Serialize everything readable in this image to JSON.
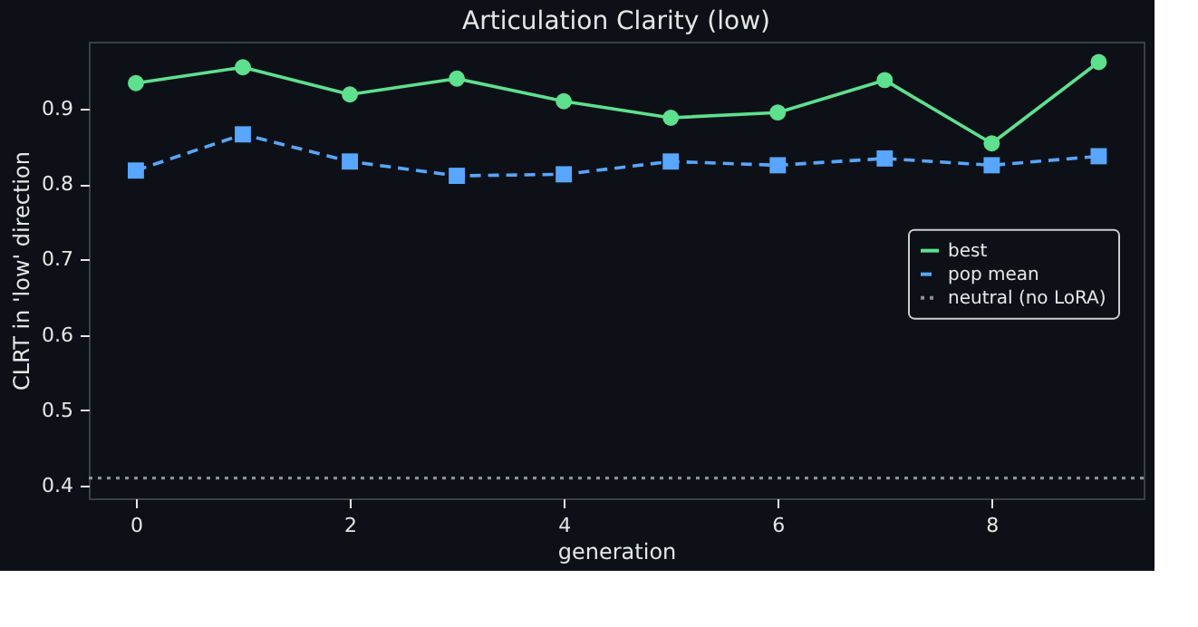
{
  "chart_data": {
    "type": "line",
    "title": "Articulation Clarity (low)",
    "xlabel": "generation",
    "ylabel": "CLRT in 'low' direction",
    "x": [
      0,
      1,
      2,
      3,
      4,
      5,
      6,
      7,
      8,
      9
    ],
    "series": [
      {
        "name": "best",
        "color": "#5ee08f",
        "marker": "circle",
        "line_style": "solid",
        "values": [
          0.934,
          0.955,
          0.919,
          0.94,
          0.91,
          0.888,
          0.895,
          0.938,
          0.854,
          0.962
        ]
      },
      {
        "name": "pop mean",
        "color": "#58a6ff",
        "marker": "square",
        "line_style": "dashed",
        "values": [
          0.818,
          0.866,
          0.83,
          0.811,
          0.813,
          0.83,
          0.825,
          0.834,
          0.825,
          0.837
        ]
      }
    ],
    "ref_lines": [
      {
        "axis": "y",
        "value": 0.41,
        "label": "neutral (no LoRA)",
        "color": "#8b8f96",
        "line_style": "dotted"
      }
    ],
    "xlim": [
      -0.44,
      9.42
    ],
    "xticks": [
      0,
      2,
      4,
      6,
      8
    ],
    "ylim": [
      0.383,
      0.989
    ],
    "yticks": [
      0.4,
      0.5,
      0.6,
      0.7,
      0.8,
      0.9
    ],
    "grid": false,
    "legend": "right"
  }
}
